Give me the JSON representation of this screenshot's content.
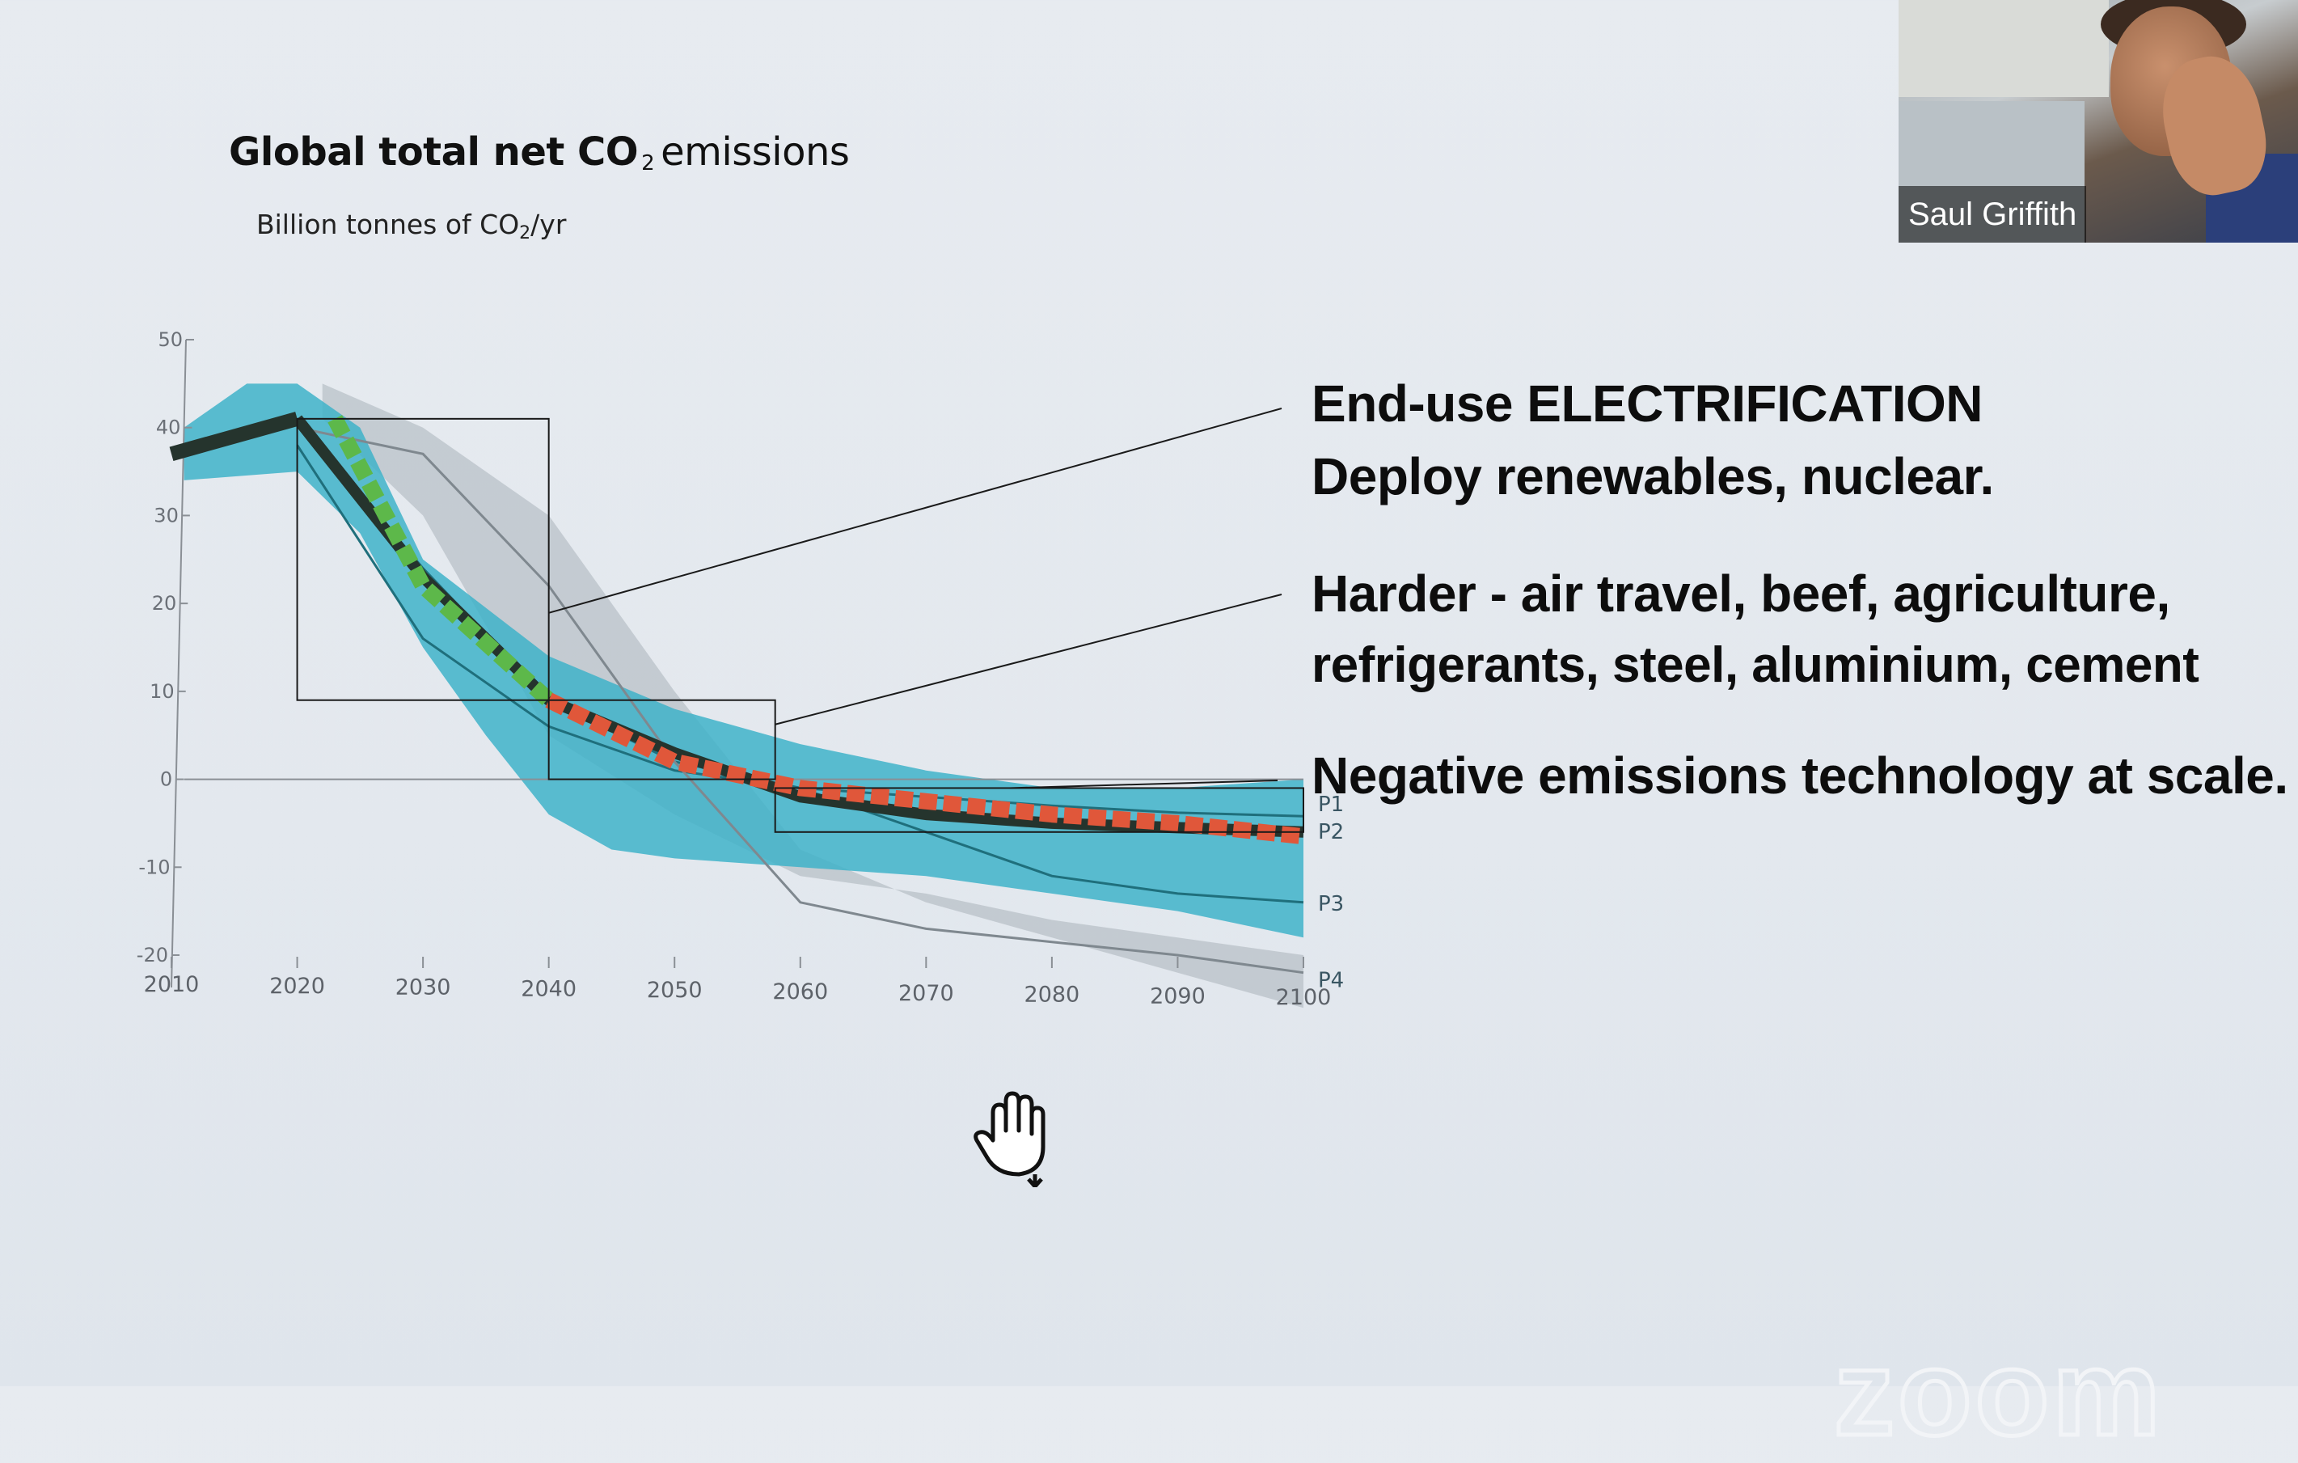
{
  "slide": {
    "title_bold": "Global total net CO",
    "title_sub": "2",
    "title_rest": "emissions",
    "subtitle_main": "Billion tonnes of CO",
    "subtitle_sub": "2",
    "subtitle_tail": "/yr",
    "callouts": [
      {
        "line1": "End-use ELECTRIFICATION",
        "line2": "Deploy renewables, nuclear."
      },
      {
        "line1": "Harder - air travel, beef, agriculture,",
        "line2": "refrigerants, steel, aluminium, cement"
      },
      {
        "line1": "Negative emissions technology at scale.",
        "line2": ""
      }
    ]
  },
  "video": {
    "participant_name": "Saul Griffith"
  },
  "watermark": "zoom",
  "cursor_icon": "hand-grab-cursor-icon",
  "chart_data": {
    "type": "line",
    "xlim": [
      2010,
      2100
    ],
    "ylim": [
      -20,
      50
    ],
    "x_ticks": [
      "2010",
      "2020",
      "2030",
      "2040",
      "2050",
      "2060",
      "2070",
      "2080",
      "2090",
      "2100"
    ],
    "y_ticks": [
      "50",
      "40",
      "30",
      "20",
      "10",
      "0",
      "-10",
      "-20"
    ],
    "historical": {
      "x": [
        2010,
        2020
      ],
      "y": [
        37,
        41
      ]
    },
    "series": [
      {
        "name": "P1",
        "x": [
          2020,
          2030,
          2040,
          2050,
          2060,
          2070,
          2080,
          2090,
          2100
        ],
        "y": [
          41,
          24,
          9,
          2,
          -1,
          -2,
          -3,
          -3.8,
          -4.2
        ]
      },
      {
        "name": "P2",
        "x": [
          2020,
          2030,
          2040,
          2050,
          2060,
          2070,
          2080,
          2090,
          2100
        ],
        "y": [
          41,
          23,
          9,
          3,
          -2,
          -4,
          -5,
          -5.5,
          -6
        ]
      },
      {
        "name": "P3",
        "x": [
          2020,
          2030,
          2040,
          2050,
          2060,
          2070,
          2080,
          2090,
          2100
        ],
        "y": [
          38,
          16,
          6,
          1,
          -1,
          -6,
          -11,
          -13,
          -14
        ]
      },
      {
        "name": "P4",
        "x": [
          2020,
          2030,
          2040,
          2050,
          2060,
          2070,
          2080,
          2090,
          2100
        ],
        "y": [
          40,
          37,
          22,
          2,
          -14,
          -17,
          -18.5,
          -20,
          -22
        ]
      }
    ],
    "highlight_phases": [
      {
        "label": "End-use ELECTRIFICATION",
        "color": "#5db84a",
        "x": [
          2023,
          2030,
          2040
        ],
        "y": [
          41,
          22,
          9
        ]
      },
      {
        "label": "Harder",
        "color": "#e0573a",
        "x": [
          2040,
          2050,
          2060,
          2070,
          2080,
          2090,
          2100
        ],
        "y": [
          9,
          2,
          -1,
          -2.5,
          -4,
          -5,
          -6.5
        ]
      }
    ],
    "highlight_boxes": [
      {
        "x": [
          2020,
          2040
        ],
        "y": [
          9,
          41
        ]
      },
      {
        "x": [
          2040,
          2058
        ],
        "y": [
          0,
          9
        ]
      },
      {
        "x": [
          2058,
          2100
        ],
        "y": [
          -6,
          -1
        ]
      }
    ],
    "colors": {
      "band": "#3fb3c9",
      "grey_band": "#aab3ba",
      "dark_line": "#25342d",
      "accent_green": "#5db84a",
      "accent_red": "#e0573a"
    }
  }
}
